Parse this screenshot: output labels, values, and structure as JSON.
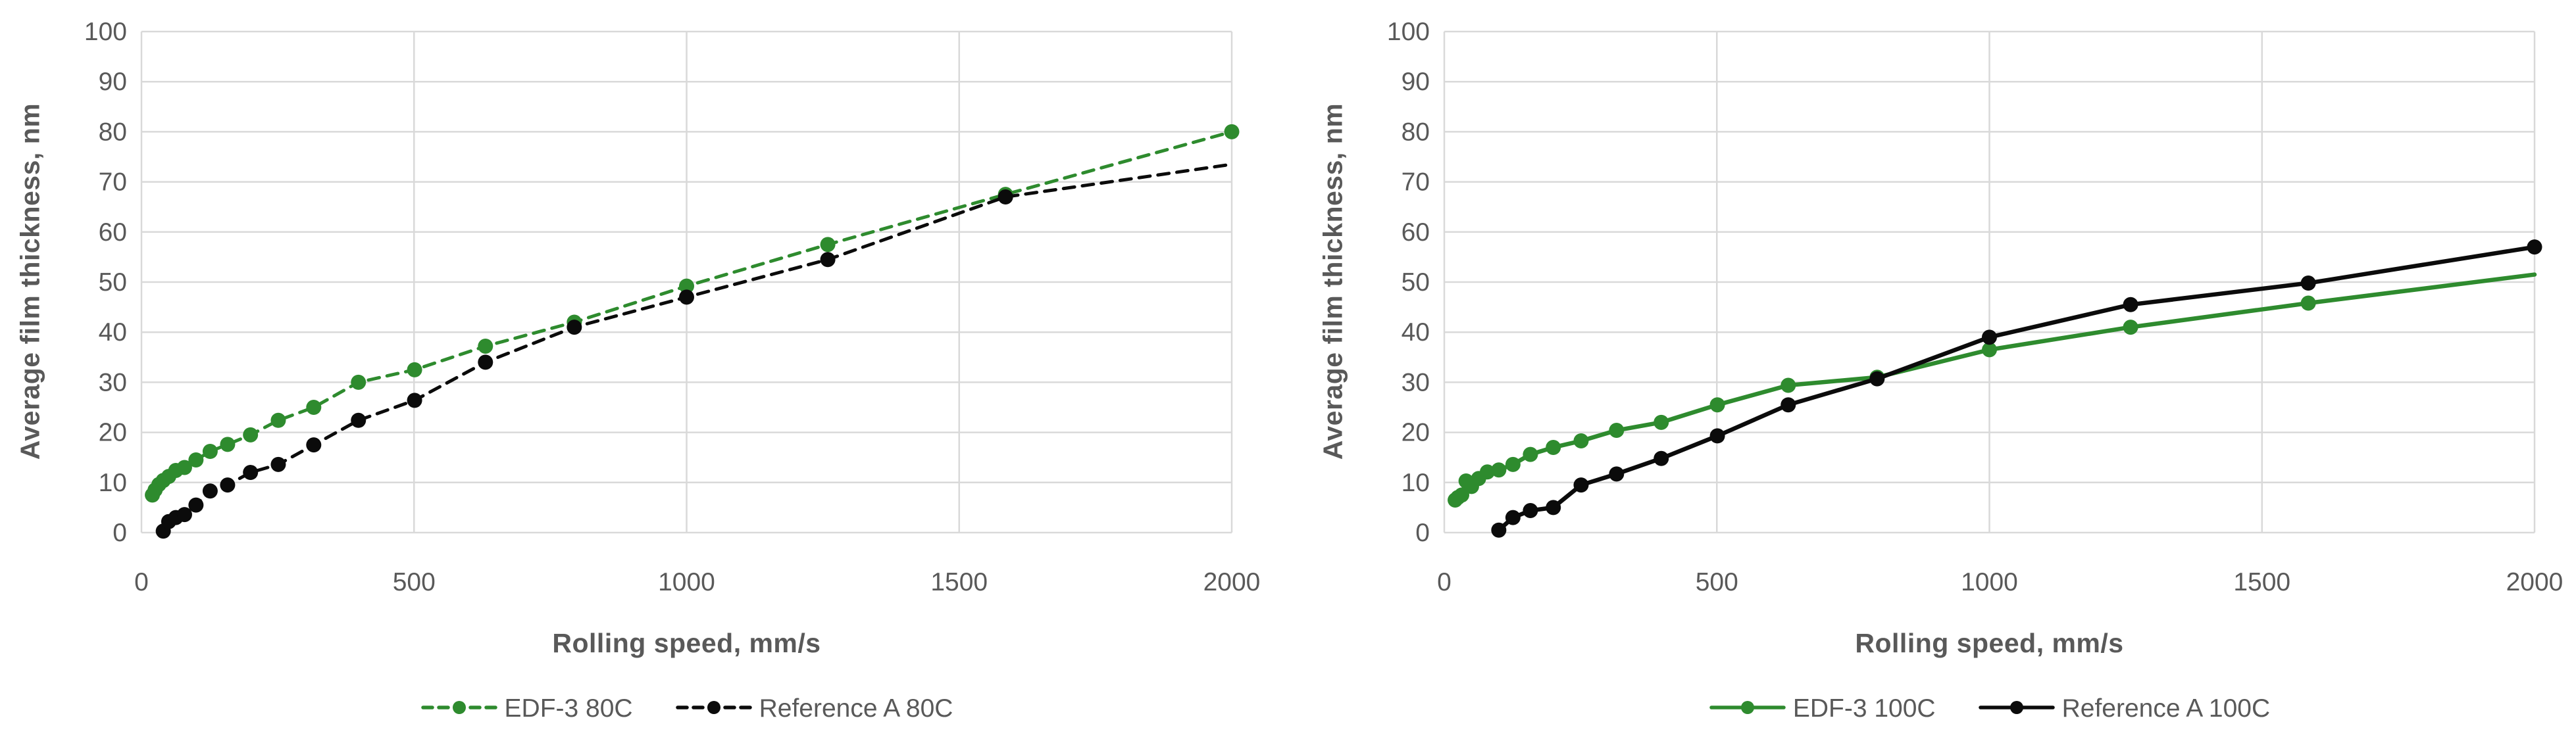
{
  "colors": {
    "green": "#2e8b2e",
    "black": "#0b0b0b",
    "grid": "#d9d9d9",
    "text": "#595959",
    "background": "#ffffff"
  },
  "chart_data": [
    {
      "type": "line",
      "title": "",
      "xlabel": "Rolling speed, mm/s",
      "ylabel": "Average film thickness, nm",
      "xlim": [
        0,
        2000
      ],
      "ylim": [
        0,
        100
      ],
      "x_ticks": [
        0,
        500,
        1000,
        1500,
        2000
      ],
      "y_ticks": [
        0,
        10,
        20,
        30,
        40,
        50,
        60,
        70,
        80,
        90,
        100
      ],
      "grid": true,
      "legend_position": "bottom",
      "series": [
        {
          "name": "EDF-3 80C",
          "color": "#2e8b2e",
          "dash": true,
          "marker": "circle",
          "end_marker": true,
          "points": [
            [
              20,
              7.5
            ],
            [
              25,
              8.5
            ],
            [
              32,
              9.6
            ],
            [
              40,
              10.4
            ],
            [
              50,
              11.2
            ],
            [
              63,
              12.4
            ],
            [
              79,
              13.0
            ],
            [
              100,
              14.5
            ],
            [
              126,
              16.2
            ],
            [
              158,
              17.6
            ],
            [
              200,
              19.5
            ],
            [
              251,
              22.4
            ],
            [
              316,
              25.0
            ],
            [
              398,
              30.0
            ],
            [
              501,
              32.5
            ],
            [
              631,
              37.2
            ],
            [
              794,
              42.0
            ],
            [
              1000,
              49.2
            ],
            [
              1259,
              57.5
            ],
            [
              1585,
              67.5
            ],
            [
              2000,
              80.0
            ]
          ]
        },
        {
          "name": "Reference A 80C",
          "color": "#0b0b0b",
          "dash": true,
          "marker": "circle",
          "end_marker": false,
          "points": [
            [
              40,
              0.3
            ],
            [
              50,
              2.2
            ],
            [
              63,
              3.0
            ],
            [
              79,
              3.6
            ],
            [
              100,
              5.5
            ],
            [
              126,
              8.3
            ],
            [
              158,
              9.5
            ],
            [
              200,
              12.0
            ],
            [
              251,
              13.6
            ],
            [
              316,
              17.5
            ],
            [
              398,
              22.4
            ],
            [
              501,
              26.4
            ],
            [
              631,
              34.0
            ],
            [
              794,
              41.0
            ],
            [
              1000,
              47.0
            ],
            [
              1259,
              54.5
            ],
            [
              1585,
              67.0
            ],
            [
              2000,
              73.5
            ]
          ]
        }
      ]
    },
    {
      "type": "line",
      "title": "",
      "xlabel": "Rolling speed, mm/s",
      "ylabel": "Average film thickness, nm",
      "xlim": [
        0,
        2000
      ],
      "ylim": [
        0,
        100
      ],
      "x_ticks": [
        0,
        500,
        1000,
        1500,
        2000
      ],
      "y_ticks": [
        0,
        10,
        20,
        30,
        40,
        50,
        60,
        70,
        80,
        90,
        100
      ],
      "grid": true,
      "legend_position": "bottom",
      "series": [
        {
          "name": "EDF-3 100C",
          "color": "#2e8b2e",
          "dash": false,
          "marker": "circle",
          "end_marker": false,
          "points": [
            [
              20,
              6.5
            ],
            [
              25,
              7.0
            ],
            [
              32,
              7.5
            ],
            [
              40,
              10.3
            ],
            [
              50,
              9.2
            ],
            [
              63,
              10.8
            ],
            [
              79,
              12.1
            ],
            [
              100,
              12.5
            ],
            [
              126,
              13.6
            ],
            [
              158,
              15.6
            ],
            [
              200,
              17.0
            ],
            [
              251,
              18.3
            ],
            [
              316,
              20.4
            ],
            [
              398,
              22.0
            ],
            [
              501,
              25.5
            ],
            [
              631,
              29.4
            ],
            [
              794,
              31.0
            ],
            [
              1000,
              36.5
            ],
            [
              1259,
              41.0
            ],
            [
              1585,
              45.8
            ],
            [
              2000,
              51.5
            ]
          ]
        },
        {
          "name": "Reference A 100C",
          "color": "#0b0b0b",
          "dash": false,
          "marker": "circle",
          "end_marker": true,
          "points": [
            [
              100,
              0.5
            ],
            [
              126,
              3.0
            ],
            [
              158,
              4.4
            ],
            [
              200,
              5.0
            ],
            [
              251,
              9.5
            ],
            [
              316,
              11.7
            ],
            [
              398,
              14.8
            ],
            [
              501,
              19.3
            ],
            [
              631,
              25.5
            ],
            [
              794,
              30.7
            ],
            [
              1000,
              39.0
            ],
            [
              1259,
              45.5
            ],
            [
              1585,
              49.8
            ],
            [
              2000,
              57.0
            ]
          ]
        }
      ]
    }
  ]
}
